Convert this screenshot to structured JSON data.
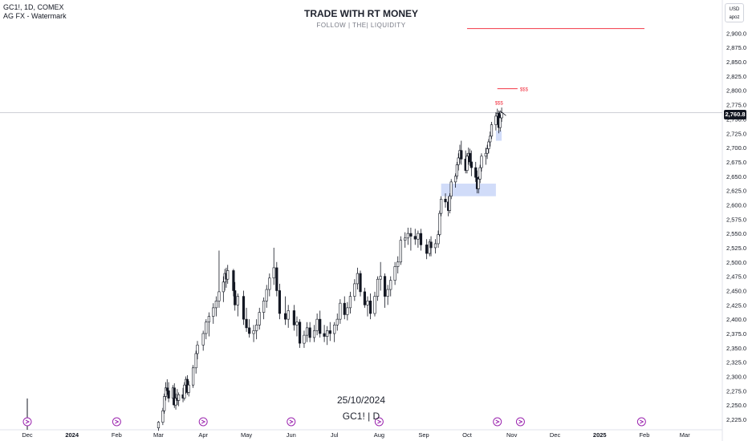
{
  "legend": {
    "symbol_line": "GC1!, 1D, COMEX",
    "indicator_line": "AG FX - Watermark"
  },
  "watermark": {
    "title": "TRADE WITH RT MONEY",
    "subtitle": "FOLLOW | THE| LIQUIDITY",
    "date": "25/10/2024",
    "symbol": "GC1! | D"
  },
  "price_scale": {
    "currency": "USD",
    "mode": "apoz",
    "last_price_label": "2,760.8"
  },
  "annotations": {
    "liquidity_label": "$$$",
    "liquidity_label_top": "$$$"
  },
  "colors": {
    "up": "#131722",
    "down": "#131722",
    "line_red": "#f23645",
    "zone": "#b2c5f5",
    "axis_text": "#131722",
    "event_icon": "#9c27b0"
  },
  "chart_data": {
    "type": "candlestick",
    "title": "",
    "xlabel": "",
    "ylabel": "",
    "x_tick_labels": [
      "Dec",
      "2024",
      "Feb",
      "Mar",
      "Apr",
      "May",
      "Jun",
      "Jul",
      "Aug",
      "Sep",
      "Oct",
      "Nov",
      "Dec",
      "2025",
      "Feb",
      "Mar"
    ],
    "x_tick_dates": [
      "2023-12-01",
      "2024-01-01",
      "2024-02-01",
      "2024-03-01",
      "2024-04-01",
      "2024-05-01",
      "2024-06-01",
      "2024-07-01",
      "2024-08-01",
      "2024-09-01",
      "2024-10-01",
      "2024-11-01",
      "2024-12-01",
      "2025-01-01",
      "2025-02-01",
      "2025-03-01"
    ],
    "y_tick_labels": [
      "2,225.0",
      "2,250.0",
      "2,275.0",
      "2,300.0",
      "2,325.0",
      "2,350.0",
      "2,375.0",
      "2,400.0",
      "2,425.0",
      "2,450.0",
      "2,475.0",
      "2,500.0",
      "2,525.0",
      "2,550.0",
      "2,575.0",
      "2,600.0",
      "2,625.0",
      "2,650.0",
      "2,675.0",
      "2,700.0",
      "2,725.0",
      "2,750.0",
      "2,775.0",
      "2,800.0",
      "2,825.0",
      "2,850.0",
      "2,875.0",
      "2,900.0"
    ],
    "ylim": [
      2208,
      2932
    ],
    "last_price": 2760.8,
    "series": [
      {
        "x": "2024-03-01",
        "o": 2210,
        "h": 2222,
        "l": 2205,
        "c": 2220
      },
      {
        "x": "2024-03-04",
        "o": 2220,
        "h": 2245,
        "l": 2215,
        "c": 2240
      },
      {
        "x": "2024-03-05",
        "o": 2240,
        "h": 2270,
        "l": 2235,
        "c": 2265
      },
      {
        "x": "2024-03-06",
        "o": 2265,
        "h": 2290,
        "l": 2258,
        "c": 2280
      },
      {
        "x": "2024-03-07",
        "o": 2280,
        "h": 2295,
        "l": 2268,
        "c": 2275
      },
      {
        "x": "2024-03-08",
        "o": 2275,
        "h": 2290,
        "l": 2255,
        "c": 2262
      },
      {
        "x": "2024-03-11",
        "o": 2262,
        "h": 2285,
        "l": 2250,
        "c": 2280
      },
      {
        "x": "2024-03-12",
        "o": 2280,
        "h": 2288,
        "l": 2245,
        "c": 2250
      },
      {
        "x": "2024-03-13",
        "o": 2250,
        "h": 2270,
        "l": 2242,
        "c": 2262
      },
      {
        "x": "2024-03-14",
        "o": 2262,
        "h": 2278,
        "l": 2250,
        "c": 2258
      },
      {
        "x": "2024-03-15",
        "o": 2258,
        "h": 2272,
        "l": 2248,
        "c": 2268
      },
      {
        "x": "2024-03-18",
        "o": 2268,
        "h": 2280,
        "l": 2255,
        "c": 2262
      },
      {
        "x": "2024-03-19",
        "o": 2262,
        "h": 2290,
        "l": 2258,
        "c": 2285
      },
      {
        "x": "2024-03-20",
        "o": 2285,
        "h": 2300,
        "l": 2270,
        "c": 2295
      },
      {
        "x": "2024-03-21",
        "o": 2295,
        "h": 2302,
        "l": 2268,
        "c": 2272
      },
      {
        "x": "2024-03-22",
        "o": 2272,
        "h": 2292,
        "l": 2265,
        "c": 2285
      },
      {
        "x": "2024-03-25",
        "o": 2285,
        "h": 2320,
        "l": 2280,
        "c": 2315
      },
      {
        "x": "2024-03-27",
        "o": 2315,
        "h": 2345,
        "l": 2305,
        "c": 2340
      },
      {
        "x": "2024-03-28",
        "o": 2340,
        "h": 2362,
        "l": 2330,
        "c": 2355
      },
      {
        "x": "2024-04-01",
        "o": 2355,
        "h": 2380,
        "l": 2345,
        "c": 2375
      },
      {
        "x": "2024-04-03",
        "o": 2375,
        "h": 2400,
        "l": 2365,
        "c": 2395
      },
      {
        "x": "2024-04-05",
        "o": 2395,
        "h": 2412,
        "l": 2370,
        "c": 2405
      },
      {
        "x": "2024-04-08",
        "o": 2405,
        "h": 2428,
        "l": 2392,
        "c": 2420
      },
      {
        "x": "2024-04-10",
        "o": 2420,
        "h": 2440,
        "l": 2405,
        "c": 2432
      },
      {
        "x": "2024-04-12",
        "o": 2432,
        "h": 2520,
        "l": 2420,
        "c": 2448
      },
      {
        "x": "2024-04-15",
        "o": 2448,
        "h": 2475,
        "l": 2430,
        "c": 2465
      },
      {
        "x": "2024-04-16",
        "o": 2465,
        "h": 2488,
        "l": 2450,
        "c": 2480
      },
      {
        "x": "2024-04-17",
        "o": 2480,
        "h": 2490,
        "l": 2455,
        "c": 2470
      },
      {
        "x": "2024-04-18",
        "o": 2470,
        "h": 2495,
        "l": 2462,
        "c": 2485
      },
      {
        "x": "2024-04-22",
        "o": 2485,
        "h": 2488,
        "l": 2440,
        "c": 2450
      },
      {
        "x": "2024-04-23",
        "o": 2450,
        "h": 2465,
        "l": 2415,
        "c": 2425
      },
      {
        "x": "2024-04-25",
        "o": 2425,
        "h": 2445,
        "l": 2405,
        "c": 2440
      },
      {
        "x": "2024-04-29",
        "o": 2440,
        "h": 2450,
        "l": 2390,
        "c": 2400
      },
      {
        "x": "2024-05-01",
        "o": 2400,
        "h": 2420,
        "l": 2378,
        "c": 2385
      },
      {
        "x": "2024-05-03",
        "o": 2385,
        "h": 2400,
        "l": 2368,
        "c": 2375
      },
      {
        "x": "2024-05-06",
        "o": 2375,
        "h": 2390,
        "l": 2360,
        "c": 2380
      },
      {
        "x": "2024-05-08",
        "o": 2380,
        "h": 2400,
        "l": 2365,
        "c": 2390
      },
      {
        "x": "2024-05-10",
        "o": 2390,
        "h": 2420,
        "l": 2382,
        "c": 2412
      },
      {
        "x": "2024-05-13",
        "o": 2412,
        "h": 2438,
        "l": 2400,
        "c": 2432
      },
      {
        "x": "2024-05-15",
        "o": 2432,
        "h": 2460,
        "l": 2420,
        "c": 2452
      },
      {
        "x": "2024-05-17",
        "o": 2452,
        "h": 2480,
        "l": 2440,
        "c": 2472
      },
      {
        "x": "2024-05-20",
        "o": 2472,
        "h": 2525,
        "l": 2460,
        "c": 2490
      },
      {
        "x": "2024-05-22",
        "o": 2490,
        "h": 2500,
        "l": 2440,
        "c": 2450
      },
      {
        "x": "2024-05-24",
        "o": 2450,
        "h": 2462,
        "l": 2400,
        "c": 2410
      },
      {
        "x": "2024-05-28",
        "o": 2410,
        "h": 2440,
        "l": 2390,
        "c": 2400
      },
      {
        "x": "2024-05-30",
        "o": 2400,
        "h": 2425,
        "l": 2385,
        "c": 2415
      },
      {
        "x": "2024-06-03",
        "o": 2415,
        "h": 2425,
        "l": 2380,
        "c": 2390
      },
      {
        "x": "2024-06-05",
        "o": 2390,
        "h": 2405,
        "l": 2370,
        "c": 2395
      },
      {
        "x": "2024-06-07",
        "o": 2395,
        "h": 2400,
        "l": 2350,
        "c": 2358
      },
      {
        "x": "2024-06-10",
        "o": 2358,
        "h": 2380,
        "l": 2350,
        "c": 2372
      },
      {
        "x": "2024-06-12",
        "o": 2372,
        "h": 2395,
        "l": 2360,
        "c": 2385
      },
      {
        "x": "2024-06-14",
        "o": 2385,
        "h": 2395,
        "l": 2360,
        "c": 2368
      },
      {
        "x": "2024-06-17",
        "o": 2368,
        "h": 2390,
        "l": 2360,
        "c": 2380
      },
      {
        "x": "2024-06-19",
        "o": 2380,
        "h": 2410,
        "l": 2372,
        "c": 2400
      },
      {
        "x": "2024-06-21",
        "o": 2400,
        "h": 2415,
        "l": 2368,
        "c": 2375
      },
      {
        "x": "2024-06-24",
        "o": 2375,
        "h": 2390,
        "l": 2360,
        "c": 2370
      },
      {
        "x": "2024-06-26",
        "o": 2370,
        "h": 2388,
        "l": 2355,
        "c": 2380
      },
      {
        "x": "2024-06-28",
        "o": 2380,
        "h": 2395,
        "l": 2362,
        "c": 2375
      },
      {
        "x": "2024-07-01",
        "o": 2375,
        "h": 2395,
        "l": 2360,
        "c": 2390
      },
      {
        "x": "2024-07-03",
        "o": 2390,
        "h": 2410,
        "l": 2380,
        "c": 2400
      },
      {
        "x": "2024-07-05",
        "o": 2400,
        "h": 2435,
        "l": 2392,
        "c": 2428
      },
      {
        "x": "2024-07-08",
        "o": 2428,
        "h": 2440,
        "l": 2400,
        "c": 2408
      },
      {
        "x": "2024-07-10",
        "o": 2408,
        "h": 2430,
        "l": 2398,
        "c": 2420
      },
      {
        "x": "2024-07-12",
        "o": 2420,
        "h": 2448,
        "l": 2410,
        "c": 2440
      },
      {
        "x": "2024-07-15",
        "o": 2440,
        "h": 2470,
        "l": 2432,
        "c": 2462
      },
      {
        "x": "2024-07-17",
        "o": 2462,
        "h": 2490,
        "l": 2452,
        "c": 2480
      },
      {
        "x": "2024-07-19",
        "o": 2480,
        "h": 2485,
        "l": 2440,
        "c": 2448
      },
      {
        "x": "2024-07-22",
        "o": 2448,
        "h": 2455,
        "l": 2420,
        "c": 2425
      },
      {
        "x": "2024-07-24",
        "o": 2425,
        "h": 2440,
        "l": 2405,
        "c": 2432
      },
      {
        "x": "2024-07-26",
        "o": 2432,
        "h": 2445,
        "l": 2400,
        "c": 2410
      },
      {
        "x": "2024-07-29",
        "o": 2410,
        "h": 2448,
        "l": 2405,
        "c": 2440
      },
      {
        "x": "2024-07-31",
        "o": 2440,
        "h": 2475,
        "l": 2432,
        "c": 2470
      },
      {
        "x": "2024-08-02",
        "o": 2470,
        "h": 2500,
        "l": 2450,
        "c": 2475
      },
      {
        "x": "2024-08-05",
        "o": 2475,
        "h": 2480,
        "l": 2420,
        "c": 2440
      },
      {
        "x": "2024-08-07",
        "o": 2440,
        "h": 2460,
        "l": 2425,
        "c": 2452
      },
      {
        "x": "2024-08-09",
        "o": 2452,
        "h": 2475,
        "l": 2440,
        "c": 2468
      },
      {
        "x": "2024-08-12",
        "o": 2468,
        "h": 2500,
        "l": 2460,
        "c": 2492
      },
      {
        "x": "2024-08-14",
        "o": 2492,
        "h": 2510,
        "l": 2480,
        "c": 2500
      },
      {
        "x": "2024-08-16",
        "o": 2500,
        "h": 2545,
        "l": 2495,
        "c": 2538
      },
      {
        "x": "2024-08-19",
        "o": 2538,
        "h": 2552,
        "l": 2525,
        "c": 2542
      },
      {
        "x": "2024-08-21",
        "o": 2542,
        "h": 2560,
        "l": 2530,
        "c": 2550
      },
      {
        "x": "2024-08-23",
        "o": 2550,
        "h": 2560,
        "l": 2520,
        "c": 2545
      },
      {
        "x": "2024-08-26",
        "o": 2545,
        "h": 2558,
        "l": 2530,
        "c": 2540
      },
      {
        "x": "2024-08-28",
        "o": 2540,
        "h": 2555,
        "l": 2525,
        "c": 2550
      },
      {
        "x": "2024-08-30",
        "o": 2550,
        "h": 2558,
        "l": 2520,
        "c": 2530
      },
      {
        "x": "2024-09-03",
        "o": 2530,
        "h": 2540,
        "l": 2505,
        "c": 2515
      },
      {
        "x": "2024-09-05",
        "o": 2515,
        "h": 2540,
        "l": 2510,
        "c": 2535
      },
      {
        "x": "2024-09-06",
        "o": 2535,
        "h": 2545,
        "l": 2510,
        "c": 2525
      },
      {
        "x": "2024-09-09",
        "o": 2525,
        "h": 2540,
        "l": 2515,
        "c": 2532
      },
      {
        "x": "2024-09-11",
        "o": 2532,
        "h": 2555,
        "l": 2525,
        "c": 2548
      },
      {
        "x": "2024-09-12",
        "o": 2548,
        "h": 2590,
        "l": 2545,
        "c": 2585
      },
      {
        "x": "2024-09-13",
        "o": 2585,
        "h": 2615,
        "l": 2580,
        "c": 2610
      },
      {
        "x": "2024-09-16",
        "o": 2610,
        "h": 2620,
        "l": 2595,
        "c": 2605
      },
      {
        "x": "2024-09-18",
        "o": 2605,
        "h": 2615,
        "l": 2580,
        "c": 2590
      },
      {
        "x": "2024-09-19",
        "o": 2590,
        "h": 2620,
        "l": 2585,
        "c": 2615
      },
      {
        "x": "2024-09-20",
        "o": 2615,
        "h": 2645,
        "l": 2610,
        "c": 2640
      },
      {
        "x": "2024-09-23",
        "o": 2640,
        "h": 2655,
        "l": 2630,
        "c": 2650
      },
      {
        "x": "2024-09-24",
        "o": 2650,
        "h": 2675,
        "l": 2645,
        "c": 2670
      },
      {
        "x": "2024-09-25",
        "o": 2670,
        "h": 2690,
        "l": 2660,
        "c": 2682
      },
      {
        "x": "2024-09-26",
        "o": 2682,
        "h": 2705,
        "l": 2672,
        "c": 2695
      },
      {
        "x": "2024-09-27",
        "o": 2695,
        "h": 2712,
        "l": 2670,
        "c": 2680
      },
      {
        "x": "2024-09-30",
        "o": 2680,
        "h": 2695,
        "l": 2655,
        "c": 2660
      },
      {
        "x": "2024-10-01",
        "o": 2660,
        "h": 2690,
        "l": 2655,
        "c": 2685
      },
      {
        "x": "2024-10-02",
        "o": 2685,
        "h": 2700,
        "l": 2670,
        "c": 2690
      },
      {
        "x": "2024-10-03",
        "o": 2690,
        "h": 2698,
        "l": 2668,
        "c": 2675
      },
      {
        "x": "2024-10-04",
        "o": 2675,
        "h": 2695,
        "l": 2650,
        "c": 2665
      },
      {
        "x": "2024-10-07",
        "o": 2665,
        "h": 2675,
        "l": 2640,
        "c": 2648
      },
      {
        "x": "2024-10-08",
        "o": 2648,
        "h": 2660,
        "l": 2620,
        "c": 2628
      },
      {
        "x": "2024-10-09",
        "o": 2628,
        "h": 2650,
        "l": 2620,
        "c": 2645
      },
      {
        "x": "2024-10-10",
        "o": 2645,
        "h": 2670,
        "l": 2638,
        "c": 2665
      },
      {
        "x": "2024-10-11",
        "o": 2665,
        "h": 2690,
        "l": 2658,
        "c": 2685
      },
      {
        "x": "2024-10-14",
        "o": 2685,
        "h": 2700,
        "l": 2670,
        "c": 2690
      },
      {
        "x": "2024-10-15",
        "o": 2690,
        "h": 2705,
        "l": 2680,
        "c": 2698
      },
      {
        "x": "2024-10-16",
        "o": 2698,
        "h": 2715,
        "l": 2690,
        "c": 2710
      },
      {
        "x": "2024-10-17",
        "o": 2710,
        "h": 2728,
        "l": 2702,
        "c": 2720
      },
      {
        "x": "2024-10-18",
        "o": 2720,
        "h": 2745,
        "l": 2715,
        "c": 2740
      },
      {
        "x": "2024-10-21",
        "o": 2740,
        "h": 2762,
        "l": 2730,
        "c": 2755
      },
      {
        "x": "2024-10-22",
        "o": 2755,
        "h": 2768,
        "l": 2740,
        "c": 2760
      },
      {
        "x": "2024-10-23",
        "o": 2760,
        "h": 2765,
        "l": 2725,
        "c": 2735
      },
      {
        "x": "2024-10-24",
        "o": 2735,
        "h": 2758,
        "l": 2728,
        "c": 2752
      },
      {
        "x": "2024-10-25",
        "o": 2752,
        "h": 2770,
        "l": 2745,
        "c": 2760.8
      }
    ],
    "volume_spike": {
      "x": "2023-12-01",
      "label": ""
    },
    "horizontal_lines": [
      {
        "price": 2908,
        "from": "2024-10-01",
        "to": "2025-02-01",
        "color": "red"
      },
      {
        "price": 2803,
        "from": "2024-10-22",
        "to": "2024-11-05",
        "color": "red"
      }
    ],
    "zones": [
      {
        "from": "2024-09-13",
        "to": "2024-10-21",
        "low": 2615,
        "high": 2637
      },
      {
        "from": "2024-10-21",
        "to": "2024-10-25",
        "low": 2712,
        "high": 2730
      }
    ],
    "events": [
      "2023-12-01",
      "2024-02-01",
      "2024-04-01",
      "2024-06-01",
      "2024-08-01",
      "2024-10-22",
      "2024-11-07",
      "2025-01-30"
    ],
    "grid": false,
    "legend": "none"
  }
}
